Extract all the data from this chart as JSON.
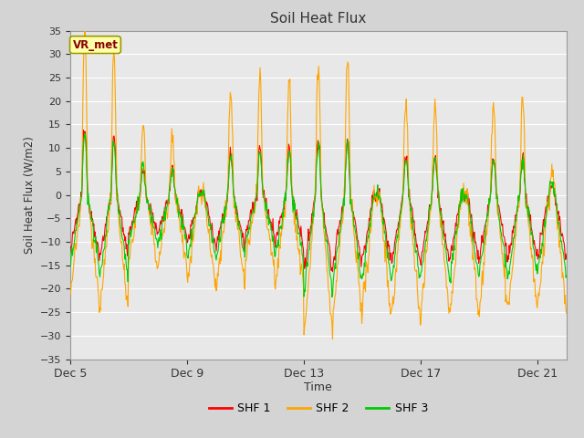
{
  "title": "Soil Heat Flux",
  "ylabel": "Soil Heat Flux (W/m2)",
  "xlabel": "Time",
  "ylim": [
    -35,
    35
  ],
  "yticks": [
    -35,
    -30,
    -25,
    -20,
    -15,
    -10,
    -5,
    0,
    5,
    10,
    15,
    20,
    25,
    30,
    35
  ],
  "colors": {
    "SHF 1": "#FF0000",
    "SHF 2": "#FFA500",
    "SHF 3": "#00CC00"
  },
  "legend_label": "VR_met",
  "fig_bg_color": "#D4D4D4",
  "plot_bg_color": "#E8E8E8",
  "grid_color": "#FFFFFF",
  "annotation_bg": "#FFFFAA",
  "annotation_border": "#999900",
  "annotation_text_color": "#8B0000",
  "x_tick_positions": [
    0,
    4,
    8,
    12,
    16
  ],
  "x_tick_labels": [
    "Dec 5",
    "Dec 9",
    "Dec 13",
    "Dec 17",
    "Dec 21"
  ],
  "n_days": 17,
  "n_per_day": 48
}
